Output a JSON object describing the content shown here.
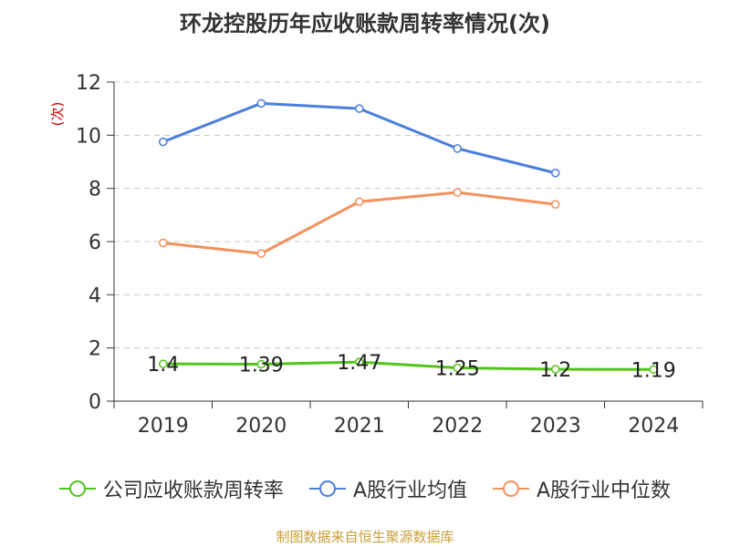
{
  "chart_data": {
    "type": "line",
    "title": "环龙控股历年应收账款周转率情况(次)",
    "ylabel": "(次)",
    "xlabel": "",
    "categories": [
      "2019",
      "2020",
      "2021",
      "2022",
      "2023",
      "2024"
    ],
    "ylim": [
      0,
      12
    ],
    "yticks": [
      0,
      2,
      4,
      6,
      8,
      10,
      12
    ],
    "grid": true,
    "legend_position": "bottom",
    "series": [
      {
        "name": "公司应收账款周转率",
        "color": "#52c41a",
        "values": [
          1.4,
          1.39,
          1.47,
          1.25,
          1.2,
          1.19
        ],
        "labels": [
          "1.4",
          "1.39",
          "1.47",
          "1.25",
          "1.2",
          "1.19"
        ]
      },
      {
        "name": "A股行业均值",
        "color": "#4a7fdc",
        "values": [
          9.75,
          11.2,
          11.0,
          9.5,
          8.58,
          null
        ]
      },
      {
        "name": "A股行业中位数",
        "color": "#f4915d",
        "values": [
          5.95,
          5.55,
          7.5,
          7.85,
          7.4,
          null
        ]
      }
    ]
  },
  "footer": "制图数据来自恒生聚源数据库"
}
